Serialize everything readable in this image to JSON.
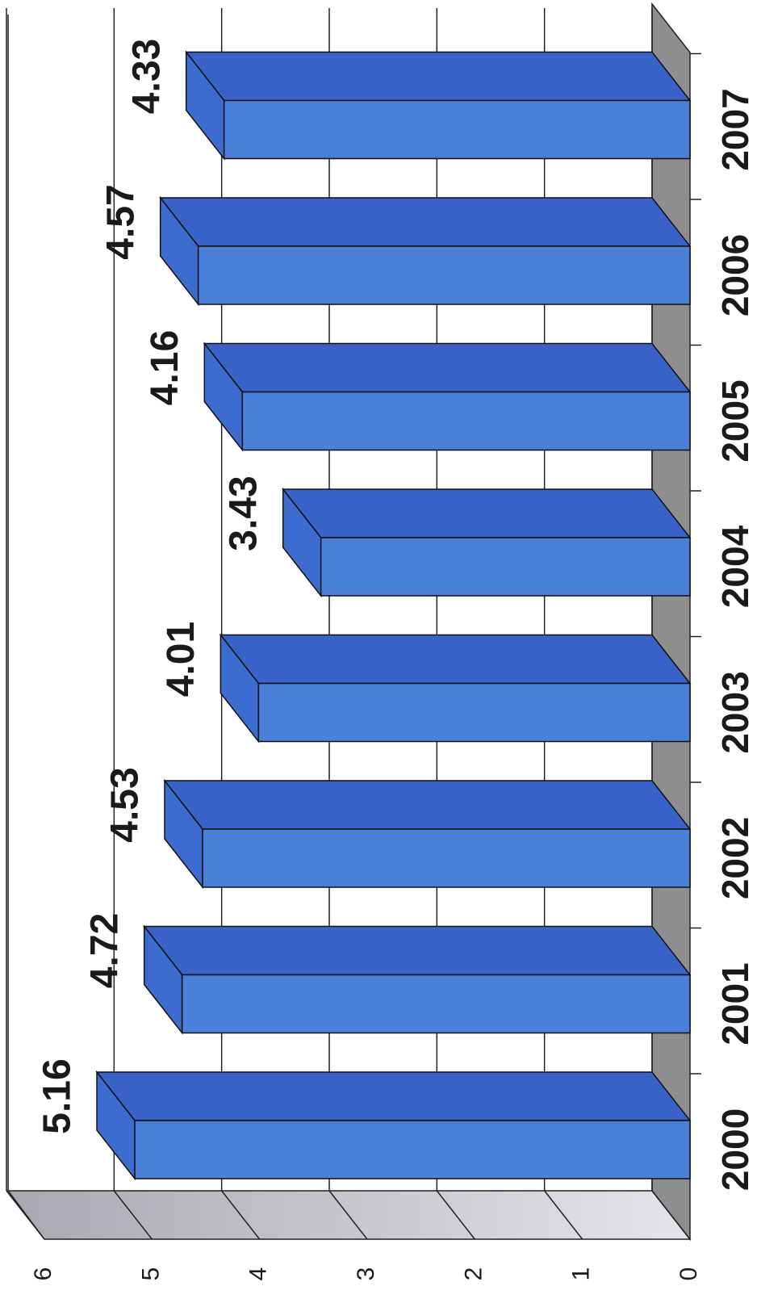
{
  "chart_data": {
    "type": "bar",
    "categories": [
      "2000",
      "2001",
      "2002",
      "2003",
      "2004",
      "2005",
      "2006",
      "2007"
    ],
    "values": [
      5.16,
      4.72,
      4.53,
      4.01,
      3.43,
      4.16,
      4.57,
      4.33
    ],
    "color": "#4a80d8",
    "ylim": [
      0,
      6
    ],
    "yticks": [
      0,
      1,
      2,
      3,
      4,
      5,
      6
    ],
    "grid": true
  }
}
